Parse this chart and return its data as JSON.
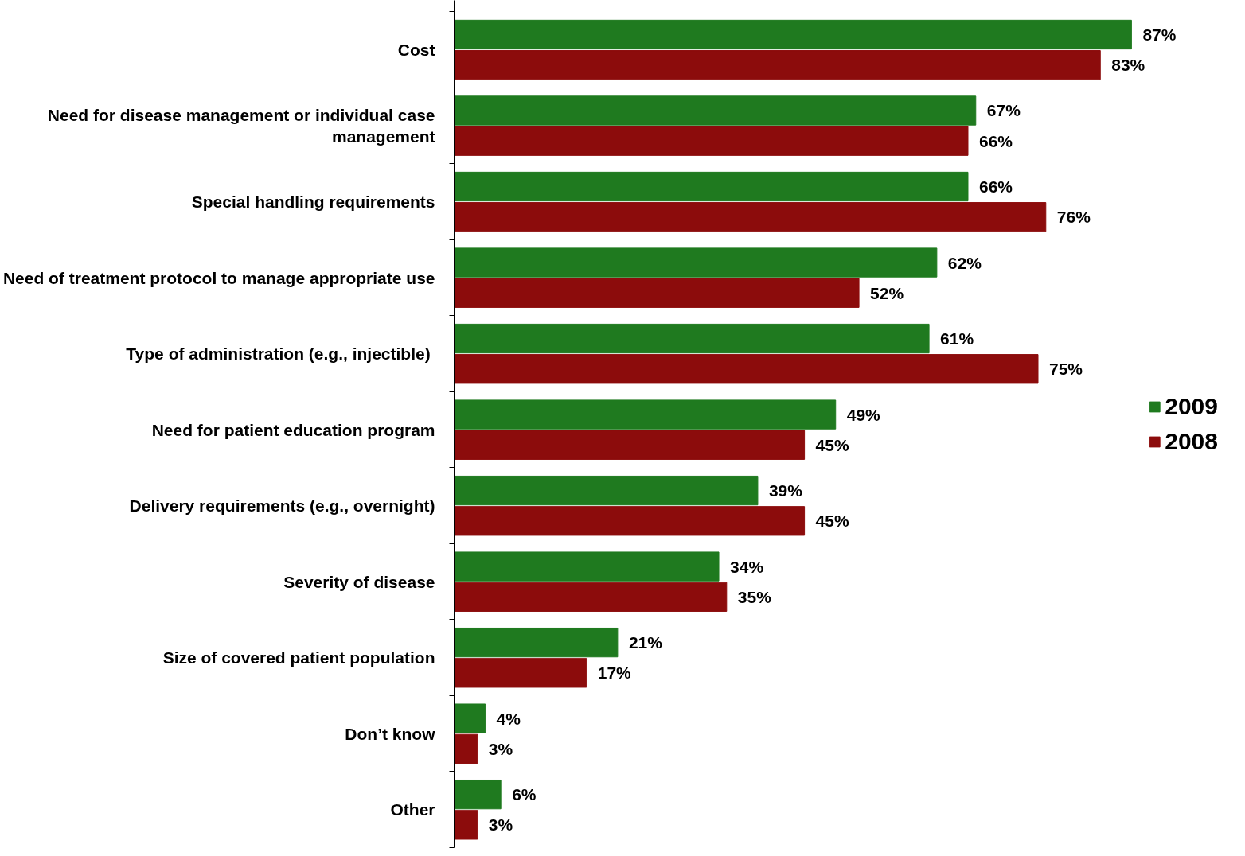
{
  "chart_data": {
    "type": "bar",
    "orientation": "horizontal",
    "categories": [
      "Cost",
      "Need for disease management or individual case management",
      "Special handling requirements",
      "Need of treatment protocol to manage appropriate use",
      "Type of administration  (e.g., injectible)",
      "Need for patient education program",
      "Delivery requirements (e.g., overnight)",
      "Severity of disease",
      "Size of covered patient population",
      "Don’t know",
      "Other"
    ],
    "series": [
      {
        "name": "2009",
        "color": "#1f7a1f",
        "values": [
          87,
          67,
          66,
          62,
          61,
          49,
          39,
          34,
          21,
          4,
          6
        ],
        "value_labels": [
          "87%",
          "67%",
          "66%",
          "62%",
          "61%",
          "49%",
          "39%",
          "34%",
          "21%",
          "4%",
          "6%"
        ]
      },
      {
        "name": "2008",
        "color": "#8c0c0c",
        "values": [
          83,
          66,
          76,
          52,
          75,
          45,
          45,
          35,
          17,
          3,
          3
        ],
        "value_labels": [
          "83%",
          "66%",
          "76%",
          "52%",
          "75%",
          "45%",
          "45%",
          "35%",
          "17%",
          "3%",
          "3%"
        ]
      }
    ],
    "legend": "right",
    "grid": false
  }
}
